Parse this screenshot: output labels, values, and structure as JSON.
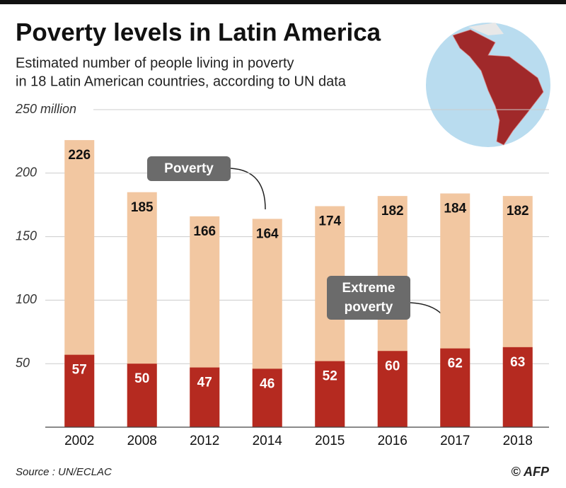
{
  "chart_data": {
    "type": "bar",
    "title": "Poverty levels in Latin America",
    "subtitle": [
      "Estimated number of people living in poverty",
      "in 18 Latin American countries, according to UN data"
    ],
    "categories": [
      "2002",
      "2008",
      "2012",
      "2014",
      "2015",
      "2016",
      "2017",
      "2018"
    ],
    "series": [
      {
        "name": "Poverty",
        "color": "#f2c7a1",
        "values": [
          226,
          185,
          166,
          164,
          174,
          182,
          184,
          182
        ]
      },
      {
        "name": "Extreme poverty",
        "color": "#b52a20",
        "values": [
          57,
          50,
          47,
          46,
          52,
          60,
          62,
          63
        ]
      }
    ],
    "ylim": [
      0,
      250
    ],
    "yticks": [
      50,
      100,
      150,
      200,
      {
        "value": 250,
        "label": "250 million"
      }
    ],
    "grid": true,
    "source": "Source : UN/ECLAC",
    "credit": "© AFP"
  }
}
